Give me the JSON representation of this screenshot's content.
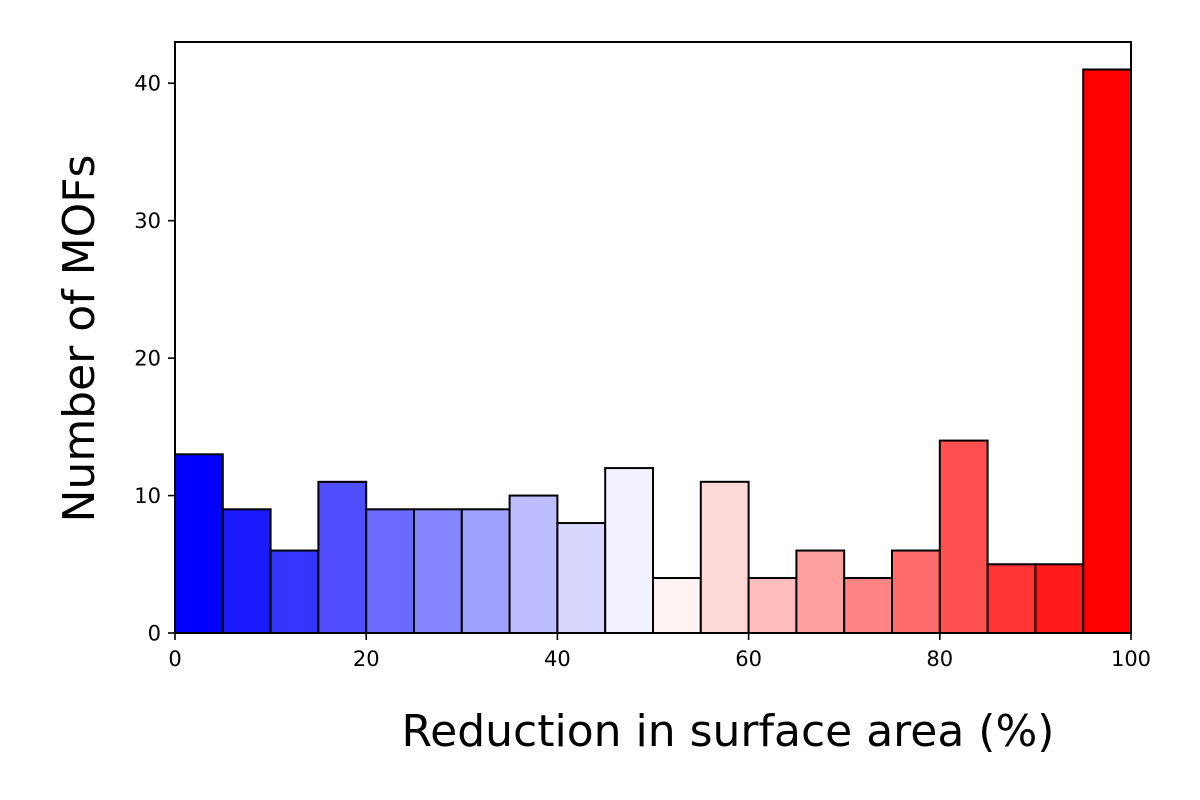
{
  "chart_data": {
    "type": "bar",
    "subtype": "histogram",
    "title": "",
    "xlabel": "Reduction in surface area (%)",
    "ylabel": "Number of MOFs",
    "xlim": [
      0,
      100
    ],
    "ylim": [
      0,
      43
    ],
    "bin_width": 5,
    "bins": [
      {
        "start": 0,
        "end": 5,
        "value": 13,
        "color": "#0000ff"
      },
      {
        "start": 5,
        "end": 10,
        "value": 9,
        "color": "#1a1aff"
      },
      {
        "start": 10,
        "end": 15,
        "value": 6,
        "color": "#3535ff"
      },
      {
        "start": 15,
        "end": 20,
        "value": 11,
        "color": "#4f4fff"
      },
      {
        "start": 20,
        "end": 25,
        "value": 9,
        "color": "#6a6aff"
      },
      {
        "start": 25,
        "end": 30,
        "value": 9,
        "color": "#8585ff"
      },
      {
        "start": 30,
        "end": 35,
        "value": 9,
        "color": "#a0a0ff"
      },
      {
        "start": 35,
        "end": 40,
        "value": 10,
        "color": "#bdbdff"
      },
      {
        "start": 40,
        "end": 45,
        "value": 8,
        "color": "#d8d8ff"
      },
      {
        "start": 45,
        "end": 50,
        "value": 12,
        "color": "#f2f2ff"
      },
      {
        "start": 50,
        "end": 55,
        "value": 4,
        "color": "#fff2f2"
      },
      {
        "start": 55,
        "end": 60,
        "value": 11,
        "color": "#ffd8d8"
      },
      {
        "start": 60,
        "end": 65,
        "value": 4,
        "color": "#ffbdbd"
      },
      {
        "start": 65,
        "end": 70,
        "value": 6,
        "color": "#ffa0a0"
      },
      {
        "start": 70,
        "end": 75,
        "value": 4,
        "color": "#ff8585"
      },
      {
        "start": 75,
        "end": 80,
        "value": 6,
        "color": "#ff6a6a"
      },
      {
        "start": 80,
        "end": 85,
        "value": 14,
        "color": "#ff4f4f"
      },
      {
        "start": 85,
        "end": 90,
        "value": 5,
        "color": "#ff3535"
      },
      {
        "start": 90,
        "end": 95,
        "value": 5,
        "color": "#ff1a1a"
      },
      {
        "start": 95,
        "end": 100,
        "value": 41,
        "color": "#ff0000"
      }
    ],
    "x_ticks": [
      0,
      20,
      40,
      60,
      80,
      100
    ],
    "x_tick_labels": [
      "0",
      "20",
      "40",
      "60",
      "80",
      "100"
    ],
    "y_ticks": [
      0,
      10,
      20,
      30,
      40
    ],
    "y_tick_labels": [
      "0",
      "10",
      "20",
      "30",
      "40"
    ],
    "bar_edge_color": "#000000",
    "grid": false,
    "legend": false
  }
}
